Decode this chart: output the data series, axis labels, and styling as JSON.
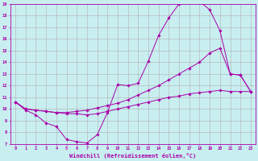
{
  "xlabel": "Windchill (Refroidissement éolien,°C)",
  "xlim": [
    -0.5,
    23.5
  ],
  "ylim": [
    7,
    19
  ],
  "xtick_labels": [
    "0",
    "1",
    "2",
    "3",
    "4",
    "5",
    "6",
    "7",
    "8",
    "9",
    "10",
    "11",
    "12",
    "13",
    "14",
    "15",
    "16",
    "17",
    "18",
    "19",
    "20",
    "21",
    "22",
    "23"
  ],
  "ytick_labels": [
    "7",
    "8",
    "9",
    "10",
    "11",
    "12",
    "13",
    "14",
    "15",
    "16",
    "17",
    "18",
    "19"
  ],
  "background_color": "#c8eef0",
  "grid_color": "#b0b0b0",
  "line_color": "#aa00aa",
  "line1_x": [
    0,
    1,
    2,
    3,
    4,
    5,
    6,
    7,
    8,
    9,
    10,
    11,
    12,
    13,
    14,
    15,
    16,
    17,
    18,
    19,
    20,
    21,
    22,
    23
  ],
  "line1_y": [
    10.6,
    9.9,
    9.5,
    8.8,
    8.5,
    7.4,
    7.2,
    7.1,
    7.8,
    9.7,
    12.1,
    12.0,
    12.2,
    14.1,
    16.3,
    17.8,
    19.0,
    19.2,
    19.2,
    18.5,
    16.7,
    13.0,
    12.9,
    11.5
  ],
  "line2_x": [
    0,
    1,
    2,
    3,
    4,
    5,
    6,
    7,
    8,
    9,
    10,
    11,
    12,
    13,
    14,
    15,
    16,
    17,
    18,
    19,
    20,
    21,
    22,
    23
  ],
  "line2_y": [
    10.6,
    10.0,
    9.9,
    9.8,
    9.7,
    9.7,
    9.8,
    9.9,
    10.1,
    10.3,
    10.5,
    10.8,
    11.2,
    11.6,
    12.0,
    12.5,
    13.0,
    13.5,
    14.0,
    14.8,
    15.2,
    13.0,
    12.9,
    11.5
  ],
  "line3_x": [
    0,
    1,
    2,
    3,
    4,
    5,
    6,
    7,
    8,
    9,
    10,
    11,
    12,
    13,
    14,
    15,
    16,
    17,
    18,
    19,
    20,
    21,
    22,
    23
  ],
  "line3_y": [
    10.6,
    10.0,
    9.9,
    9.8,
    9.7,
    9.6,
    9.6,
    9.5,
    9.6,
    9.8,
    10.0,
    10.2,
    10.4,
    10.6,
    10.8,
    11.0,
    11.1,
    11.3,
    11.4,
    11.5,
    11.6,
    11.5,
    11.5,
    11.5
  ]
}
